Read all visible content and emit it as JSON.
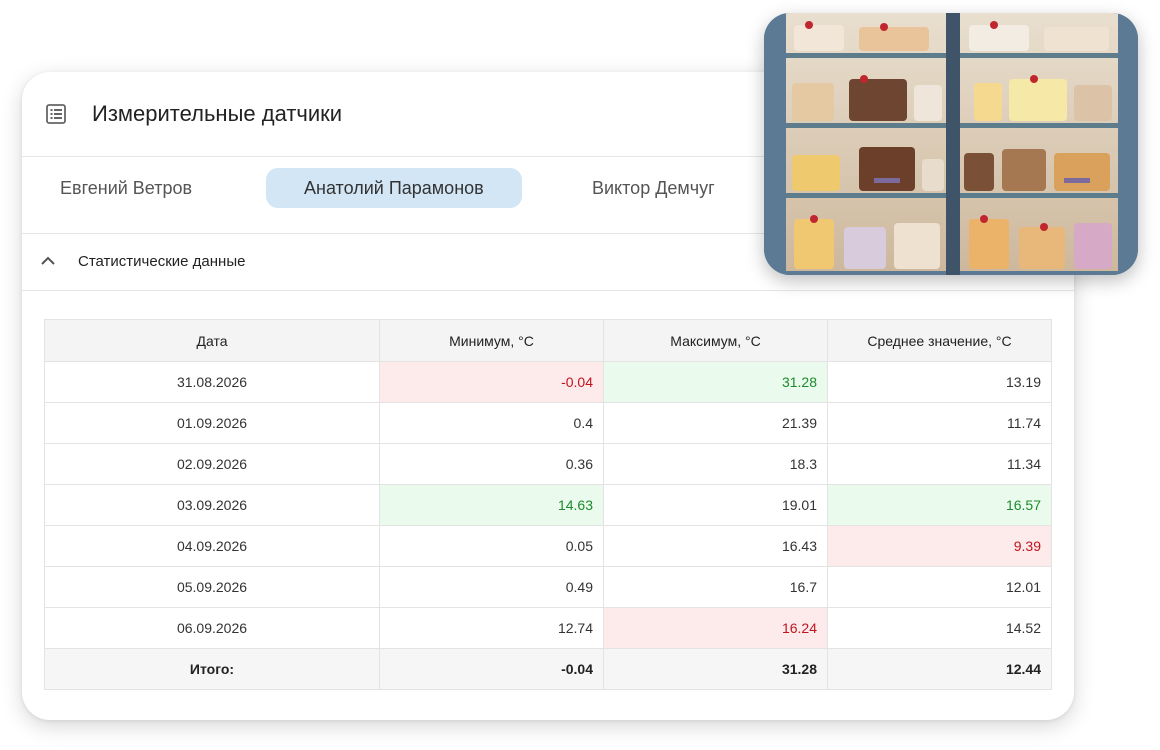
{
  "header": {
    "title": "Измерительные датчики",
    "icon": "list-icon"
  },
  "tabs": [
    {
      "label": "Евгений Ветров",
      "active": false
    },
    {
      "label": "Анатолий Парамонов",
      "active": true
    },
    {
      "label": "Виктор Демчуг",
      "active": false
    }
  ],
  "section": {
    "label": "Статистические данные",
    "icon": "chevron-up-icon",
    "expanded": true
  },
  "table": {
    "columns": [
      "Дата",
      "Минимум, °C",
      "Максимум, °C",
      "Среднее значение, °C"
    ],
    "rows": [
      {
        "date": "31.08.2026",
        "min": "-0.04",
        "max": "31.28",
        "avg": "13.19"
      },
      {
        "date": "01.09.2026",
        "min": "0.4",
        "max": "21.39",
        "avg": "11.74"
      },
      {
        "date": "02.09.2026",
        "min": "0.36",
        "max": "18.3",
        "avg": "11.34"
      },
      {
        "date": "03.09.2026",
        "min": "14.63",
        "max": "19.01",
        "avg": "16.57"
      },
      {
        "date": "04.09.2026",
        "min": "0.05",
        "max": "16.43",
        "avg": "9.39"
      },
      {
        "date": "05.09.2026",
        "min": "0.49",
        "max": "16.7",
        "avg": "12.01"
      },
      {
        "date": "06.09.2026",
        "min": "12.74",
        "max": "16.24",
        "avg": "14.52"
      }
    ],
    "total": {
      "label": "Итого:",
      "min": "-0.04",
      "max": "31.28",
      "avg": "12.44"
    }
  },
  "colors": {
    "active_tab": "#d2e6f5",
    "highlight_red_bg": "#fdeaea",
    "highlight_red_text": "#c0151f",
    "highlight_green_bg": "#eafbee",
    "highlight_green_text": "#1c8a2c"
  },
  "photo": {
    "subject": "pastry display case with cakes"
  }
}
